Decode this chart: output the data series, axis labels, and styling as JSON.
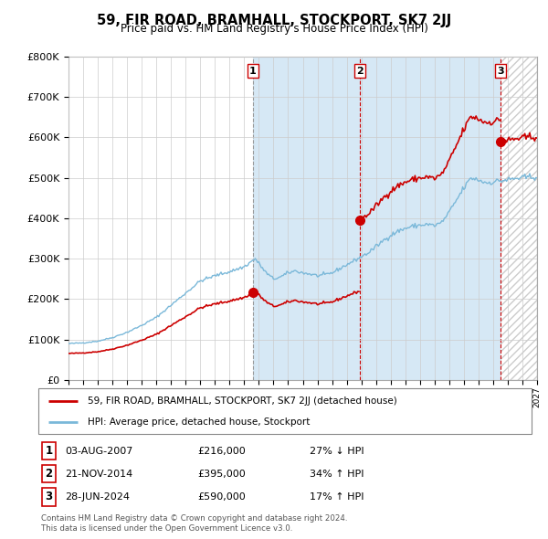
{
  "title": "59, FIR ROAD, BRAMHALL, STOCKPORT, SK7 2JJ",
  "subtitle": "Price paid vs. HM Land Registry's House Price Index (HPI)",
  "sales_dates_num": [
    2007.583,
    2014.875,
    2024.5
  ],
  "sales_prices": [
    216000,
    395000,
    590000
  ],
  "sales_labels": [
    "1",
    "2",
    "3"
  ],
  "table_rows": [
    [
      "1",
      "03-AUG-2007",
      "£216,000",
      "27% ↓ HPI"
    ],
    [
      "2",
      "21-NOV-2014",
      "£395,000",
      "34% ↑ HPI"
    ],
    [
      "3",
      "28-JUN-2024",
      "£590,000",
      "17% ↑ HPI"
    ]
  ],
  "legend_entries": [
    "59, FIR ROAD, BRAMHALL, STOCKPORT, SK7 2JJ (detached house)",
    "HPI: Average price, detached house, Stockport"
  ],
  "footer": [
    "Contains HM Land Registry data © Crown copyright and database right 2024.",
    "This data is licensed under the Open Government Licence v3.0."
  ],
  "hpi_anchors": [
    [
      1995.0,
      90000
    ],
    [
      1996.0,
      92000
    ],
    [
      1997.0,
      96000
    ],
    [
      1998.0,
      105000
    ],
    [
      1999.0,
      118000
    ],
    [
      2000.0,
      135000
    ],
    [
      2001.0,
      155000
    ],
    [
      2002.0,
      185000
    ],
    [
      2003.0,
      215000
    ],
    [
      2004.0,
      245000
    ],
    [
      2005.0,
      258000
    ],
    [
      2006.0,
      268000
    ],
    [
      2007.0,
      280000
    ],
    [
      2007.75,
      300000
    ],
    [
      2008.5,
      265000
    ],
    [
      2009.0,
      250000
    ],
    [
      2009.5,
      255000
    ],
    [
      2010.0,
      265000
    ],
    [
      2010.5,
      270000
    ],
    [
      2011.0,
      265000
    ],
    [
      2011.5,
      262000
    ],
    [
      2012.0,
      258000
    ],
    [
      2012.5,
      260000
    ],
    [
      2013.0,
      265000
    ],
    [
      2013.5,
      275000
    ],
    [
      2014.0,
      285000
    ],
    [
      2014.5,
      295000
    ],
    [
      2015.0,
      305000
    ],
    [
      2015.5,
      315000
    ],
    [
      2016.0,
      330000
    ],
    [
      2016.5,
      345000
    ],
    [
      2017.0,
      358000
    ],
    [
      2017.5,
      368000
    ],
    [
      2018.0,
      375000
    ],
    [
      2018.5,
      380000
    ],
    [
      2019.0,
      383000
    ],
    [
      2019.5,
      385000
    ],
    [
      2020.0,
      382000
    ],
    [
      2020.5,
      390000
    ],
    [
      2021.0,
      415000
    ],
    [
      2021.5,
      445000
    ],
    [
      2022.0,
      475000
    ],
    [
      2022.5,
      500000
    ],
    [
      2023.0,
      495000
    ],
    [
      2023.5,
      488000
    ],
    [
      2024.0,
      490000
    ],
    [
      2024.5,
      493000
    ],
    [
      2025.0,
      495000
    ],
    [
      2025.5,
      498000
    ],
    [
      2026.0,
      500000
    ],
    [
      2026.5,
      502000
    ],
    [
      2027.0,
      503000
    ]
  ],
  "ylim": [
    0,
    800000
  ],
  "yticks": [
    0,
    100000,
    200000,
    300000,
    400000,
    500000,
    600000,
    700000,
    800000
  ],
  "xlim": [
    1995,
    2027
  ],
  "hpi_color": "#7ab8d9",
  "price_color": "#cc0000",
  "sale_dot_color": "#cc0000",
  "grid_color": "#cccccc",
  "shade_color": "#d6e8f5",
  "hatch_color": "#cccccc"
}
